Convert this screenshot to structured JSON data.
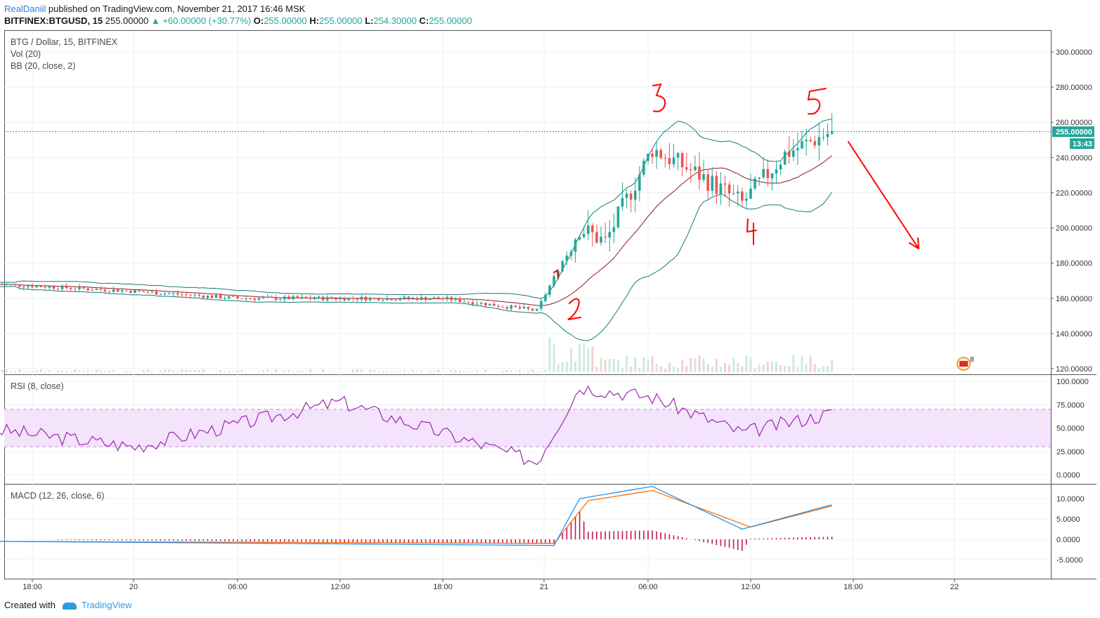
{
  "header": {
    "author": "RealDaniil",
    "published": "published on TradingView.com, November 21, 2017 16:46 MSK",
    "symbol": "BITFINEX:BTGUSD, 15",
    "price": "255.00000",
    "change": "+60.00000 (+30.77%)",
    "o_label": "O:",
    "o": "255.00000",
    "h_label": "H:",
    "h": "255.00000",
    "l_label": "L:",
    "l": "254.30000",
    "c_label": "C:",
    "c": "255.00000"
  },
  "indicators": {
    "main_title": "BTG / Dollar, 15, BITFINEX",
    "vol": "Vol (20)",
    "bb": "BB (20, close, 2)",
    "rsi": "RSI (8, close)",
    "macd": "MACD (12, 26, close, 6)"
  },
  "price_axis": {
    "ticks": [
      "300.00000",
      "280.00000",
      "260.00000",
      "240.00000",
      "220.00000",
      "200.00000",
      "180.00000",
      "160.00000",
      "140.00000",
      "120.00000"
    ],
    "last_price": "255.00000",
    "countdown": "13:43"
  },
  "rsi_axis": {
    "ticks": [
      "100.0000",
      "75.0000",
      "50.0000",
      "25.0000",
      "0.0000"
    ]
  },
  "macd_axis": {
    "ticks": [
      "10.0000",
      "5.0000",
      "0.0000",
      "-5.0000"
    ]
  },
  "time_axis": {
    "ticks": [
      "18:00",
      "20",
      "06:00",
      "12:00",
      "18:00",
      "21",
      "06:00",
      "12:00",
      "18:00",
      "22"
    ]
  },
  "annotations": {
    "wave_labels": [
      "1",
      "2",
      "3",
      "4",
      "5"
    ],
    "event_badge": "8"
  },
  "footer": {
    "created": "Created with",
    "brand": "TradingView"
  },
  "colors": {
    "up": "#26a69a",
    "down": "#ef5350",
    "bb_band": "#0e7c7b",
    "bb_mid": "#8b1a1a",
    "rsi": "#9c27b0",
    "macd": "#2196f3",
    "signal": "#ff6d00",
    "hist": "#c2185b",
    "annotation": "#ff0000"
  },
  "chart_data": [
    {
      "type": "candlestick",
      "title": "BTG / Dollar, 15, BITFINEX",
      "ylim": [
        117,
        310
      ],
      "x_range": [
        "2017-11-19 16:00",
        "2017-11-22 05:00"
      ],
      "price_keypoints": [
        {
          "t": "2017-11-19 16:00",
          "close": 168
        },
        {
          "t": "2017-11-20 00:00",
          "close": 164
        },
        {
          "t": "2017-11-20 06:00",
          "close": 160
        },
        {
          "t": "2017-11-20 12:00",
          "close": 160
        },
        {
          "t": "2017-11-20 18:00",
          "close": 160
        },
        {
          "t": "2017-11-20 23:30",
          "close": 153
        },
        {
          "t": "2017-11-21 02:00",
          "close": 200
        },
        {
          "t": "2017-11-21 03:30",
          "close": 192
        },
        {
          "t": "2017-11-21 06:15",
          "close": 245
        },
        {
          "t": "2017-11-21 09:00",
          "close": 230
        },
        {
          "t": "2017-11-21 11:30",
          "close": 214
        },
        {
          "t": "2017-11-21 14:00",
          "close": 242
        },
        {
          "t": "2017-11-21 16:45",
          "close": 255
        }
      ],
      "last_price": 255,
      "volume_max": 145
    },
    {
      "type": "line",
      "title": "RSI (8, close)",
      "ylim": [
        -5,
        102
      ],
      "band": [
        30,
        70
      ],
      "keypoints": [
        {
          "t": "2017-11-19 16:00",
          "v": 48
        },
        {
          "t": "2017-11-20 00:00",
          "v": 30
        },
        {
          "t": "2017-11-20 12:00",
          "v": 78
        },
        {
          "t": "2017-11-20 23:30",
          "v": 14
        },
        {
          "t": "2017-11-21 02:00",
          "v": 94
        },
        {
          "t": "2017-11-21 06:15",
          "v": 83
        },
        {
          "t": "2017-11-21 11:30",
          "v": 45
        },
        {
          "t": "2017-11-21 16:45",
          "v": 66
        }
      ]
    },
    {
      "type": "line",
      "title": "MACD (12, 26, close, 6)",
      "ylim": [
        -9,
        14
      ],
      "series": [
        {
          "name": "MACD",
          "keypoints": [
            {
              "t": "2017-11-19 16:00",
              "v": -0.5
            },
            {
              "t": "2017-11-21 00:30",
              "v": -1.5
            },
            {
              "t": "2017-11-21 02:00",
              "v": 10
            },
            {
              "t": "2017-11-21 06:15",
              "v": 13
            },
            {
              "t": "2017-11-21 11:30",
              "v": 2.5
            },
            {
              "t": "2017-11-21 16:45",
              "v": 8.5
            }
          ]
        },
        {
          "name": "Signal",
          "keypoints": [
            {
              "t": "2017-11-19 16:00",
              "v": -0.5
            },
            {
              "t": "2017-11-21 00:30",
              "v": -1
            },
            {
              "t": "2017-11-21 02:30",
              "v": 9.5
            },
            {
              "t": "2017-11-21 06:15",
              "v": 12
            },
            {
              "t": "2017-11-21 12:00",
              "v": 3
            },
            {
              "t": "2017-11-21 16:45",
              "v": 8.2
            }
          ]
        }
      ]
    }
  ]
}
